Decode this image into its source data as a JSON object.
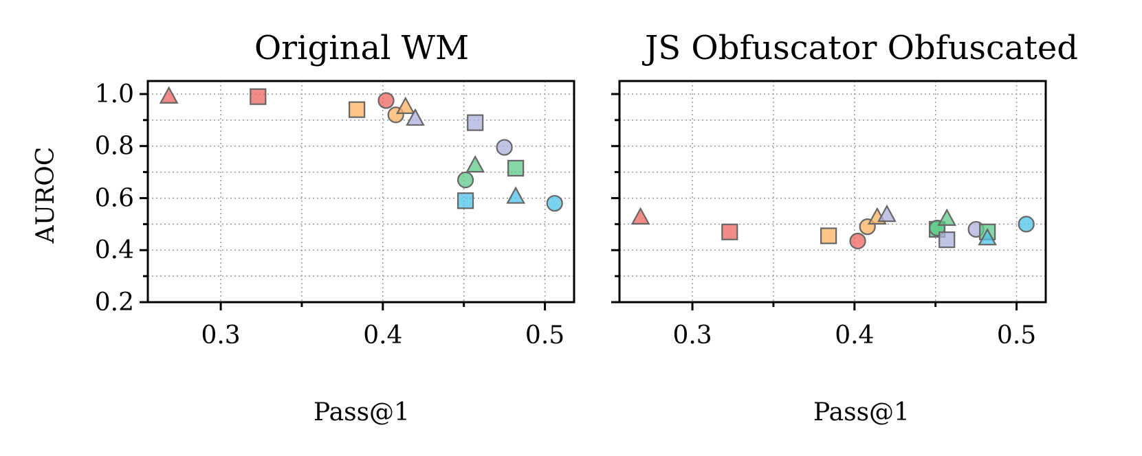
{
  "chart_data": [
    {
      "type": "scatter",
      "title": "Original WM",
      "xlabel": "Pass@1",
      "ylabel": "AUROC",
      "xlim": [
        0.255,
        0.518
      ],
      "ylim": [
        0.2,
        1.05
      ],
      "xticks": [
        0.3,
        0.4,
        0.5
      ],
      "xtick_labels": [
        "0.3",
        "0.4",
        "0.5"
      ],
      "yticks": [
        0.2,
        0.4,
        0.6,
        0.8,
        1.0
      ],
      "ytick_labels": [
        "0.2",
        "0.4",
        "0.6",
        "0.8",
        "1.0"
      ],
      "grid": true,
      "show_ylabels": true,
      "points": [
        {
          "x": 0.268,
          "y": 0.99,
          "marker": "triangle",
          "color": "#ef6461"
        },
        {
          "x": 0.323,
          "y": 0.99,
          "marker": "square",
          "color": "#ef6461"
        },
        {
          "x": 0.402,
          "y": 0.975,
          "marker": "circle",
          "color": "#ef6461"
        },
        {
          "x": 0.384,
          "y": 0.94,
          "marker": "square",
          "color": "#fbb15f"
        },
        {
          "x": 0.408,
          "y": 0.92,
          "marker": "circle",
          "color": "#fbb15f"
        },
        {
          "x": 0.414,
          "y": 0.95,
          "marker": "triangle",
          "color": "#fbb15f"
        },
        {
          "x": 0.42,
          "y": 0.905,
          "marker": "triangle",
          "color": "#aeb0dc"
        },
        {
          "x": 0.457,
          "y": 0.89,
          "marker": "square",
          "color": "#aeb0dc"
        },
        {
          "x": 0.475,
          "y": 0.795,
          "marker": "circle",
          "color": "#aeb0dc"
        },
        {
          "x": 0.457,
          "y": 0.725,
          "marker": "triangle",
          "color": "#5cc98a"
        },
        {
          "x": 0.482,
          "y": 0.715,
          "marker": "square",
          "color": "#5cc98a"
        },
        {
          "x": 0.451,
          "y": 0.67,
          "marker": "circle",
          "color": "#5cc98a"
        },
        {
          "x": 0.451,
          "y": 0.59,
          "marker": "square",
          "color": "#4dc3ea"
        },
        {
          "x": 0.482,
          "y": 0.605,
          "marker": "triangle",
          "color": "#4dc3ea"
        },
        {
          "x": 0.506,
          "y": 0.58,
          "marker": "circle",
          "color": "#4dc3ea"
        }
      ]
    },
    {
      "type": "scatter",
      "title": "JS Obfuscator Obfuscated",
      "xlabel": "Pass@1",
      "ylabel": "",
      "xlim": [
        0.255,
        0.518
      ],
      "ylim": [
        0.2,
        1.05
      ],
      "xticks": [
        0.3,
        0.4,
        0.5
      ],
      "xtick_labels": [
        "0.3",
        "0.4",
        "0.5"
      ],
      "yticks": [
        0.2,
        0.4,
        0.6,
        0.8,
        1.0
      ],
      "ytick_labels": [],
      "grid": true,
      "show_ylabels": false,
      "points": [
        {
          "x": 0.268,
          "y": 0.525,
          "marker": "triangle",
          "color": "#ef6461"
        },
        {
          "x": 0.323,
          "y": 0.47,
          "marker": "square",
          "color": "#ef6461"
        },
        {
          "x": 0.402,
          "y": 0.435,
          "marker": "circle",
          "color": "#ef6461"
        },
        {
          "x": 0.384,
          "y": 0.455,
          "marker": "square",
          "color": "#fbb15f"
        },
        {
          "x": 0.408,
          "y": 0.49,
          "marker": "circle",
          "color": "#fbb15f"
        },
        {
          "x": 0.414,
          "y": 0.525,
          "marker": "triangle",
          "color": "#fbb15f"
        },
        {
          "x": 0.42,
          "y": 0.535,
          "marker": "triangle",
          "color": "#aeb0dc"
        },
        {
          "x": 0.451,
          "y": 0.48,
          "marker": "square",
          "color": "#5cc98a"
        },
        {
          "x": 0.451,
          "y": 0.485,
          "marker": "circle",
          "color": "#5cc98a"
        },
        {
          "x": 0.457,
          "y": 0.52,
          "marker": "triangle",
          "color": "#5cc98a"
        },
        {
          "x": 0.457,
          "y": 0.44,
          "marker": "square",
          "color": "#aeb0dc"
        },
        {
          "x": 0.475,
          "y": 0.48,
          "marker": "circle",
          "color": "#aeb0dc"
        },
        {
          "x": 0.482,
          "y": 0.47,
          "marker": "square",
          "color": "#5cc98a"
        },
        {
          "x": 0.482,
          "y": 0.445,
          "marker": "triangle",
          "color": "#4dc3ea"
        },
        {
          "x": 0.506,
          "y": 0.5,
          "marker": "circle",
          "color": "#4dc3ea"
        }
      ]
    }
  ]
}
